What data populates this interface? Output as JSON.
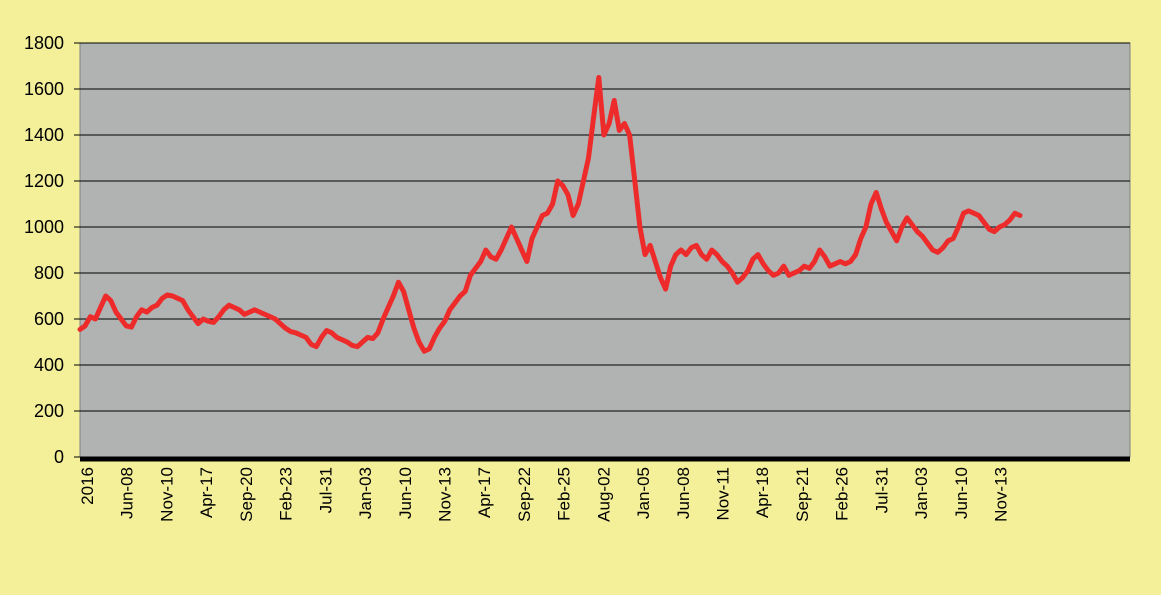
{
  "colors": {
    "page_background": "#f4f09a",
    "plot_background": "#b1b3b3",
    "gridline": "#000000",
    "series_line": "#ee2b2b",
    "baseline": "#000000"
  },
  "chart_data": {
    "type": "line",
    "title": "",
    "xlabel": "",
    "ylabel": "",
    "ylim": [
      0,
      1800
    ],
    "y_ticks": [
      "0",
      "200",
      "400",
      "600",
      "800",
      "1000",
      "1200",
      "1400",
      "1600",
      "1800"
    ],
    "x_ticks": [
      "2016",
      "Jun-08",
      "Nov-10",
      "Apr-17",
      "Sep-20",
      "Feb-23",
      "Jul-31",
      "Jan-03",
      "Jun-10",
      "Nov-13",
      "Apr-17",
      "Sep-22",
      "Feb-25",
      "Aug-02",
      "Jan-05",
      "Jun-08",
      "Nov-11",
      "Apr-18",
      "Sep-21",
      "Feb-26",
      "Jul-31",
      "Jan-03",
      "Jun-10",
      "Nov-13"
    ],
    "grid": true,
    "legend": "none",
    "series": [
      {
        "values": [
          555,
          570,
          610,
          600,
          650,
          700,
          680,
          630,
          600,
          570,
          565,
          610,
          640,
          630,
          650,
          660,
          690,
          705,
          700,
          690,
          680,
          640,
          610,
          580,
          600,
          590,
          585,
          610,
          640,
          660,
          650,
          640,
          620,
          630,
          640,
          630,
          620,
          610,
          600,
          580,
          560,
          545,
          540,
          530,
          520,
          490,
          480,
          520,
          550,
          540,
          520,
          510,
          500,
          485,
          480,
          500,
          520,
          515,
          540,
          600,
          650,
          700,
          760,
          720,
          640,
          560,
          500,
          460,
          470,
          520,
          560,
          590,
          640,
          670,
          700,
          720,
          790,
          820,
          850,
          900,
          870,
          860,
          900,
          950,
          1000,
          950,
          900,
          850,
          950,
          1000,
          1050,
          1060,
          1100,
          1200,
          1180,
          1140,
          1050,
          1100,
          1200,
          1300,
          1480,
          1650,
          1400,
          1450,
          1550,
          1420,
          1450,
          1400,
          1200,
          1000,
          880,
          920,
          850,
          780,
          730,
          830,
          880,
          900,
          880,
          910,
          920,
          880,
          860,
          900,
          880,
          850,
          830,
          800,
          760,
          780,
          810,
          860,
          880,
          840,
          810,
          790,
          800,
          830,
          790,
          800,
          810,
          830,
          820,
          850,
          900,
          870,
          830,
          840,
          850,
          840,
          850,
          880,
          950,
          1000,
          1100,
          1150,
          1080,
          1020,
          980,
          940,
          1000,
          1040,
          1010,
          980,
          960,
          930,
          900,
          890,
          910,
          940,
          950,
          1000,
          1060,
          1070,
          1060,
          1050,
          1020,
          990,
          980,
          1000,
          1010,
          1030,
          1060,
          1050
        ]
      }
    ]
  }
}
